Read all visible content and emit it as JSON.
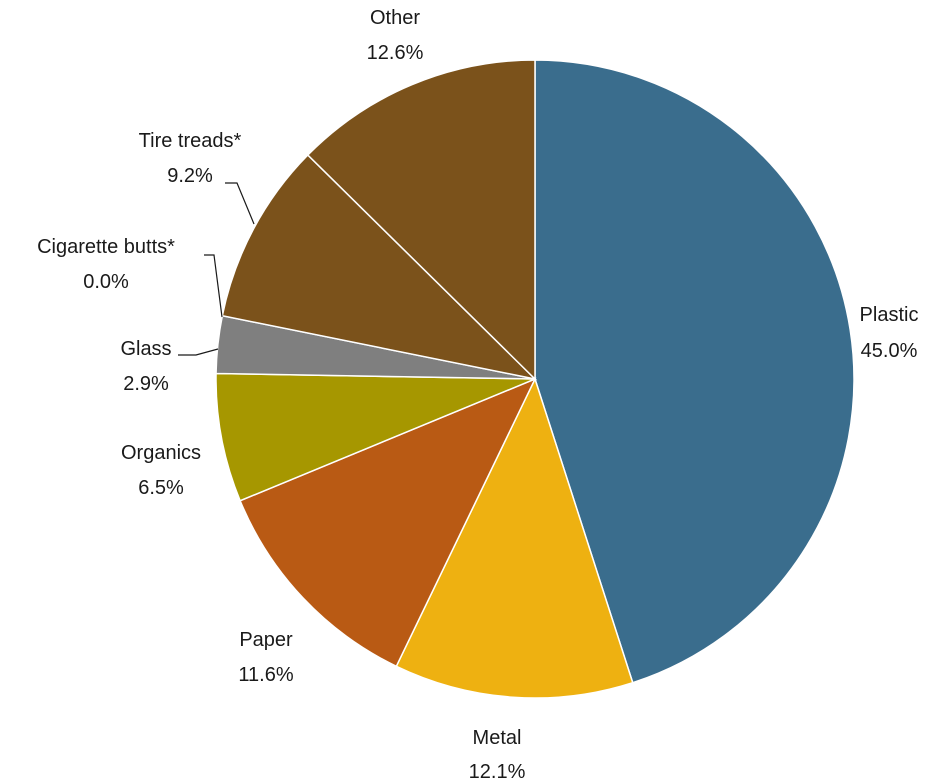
{
  "chart_data": {
    "type": "pie",
    "start_angle_deg": 0,
    "direction": "clockwise",
    "slices": [
      {
        "label": "Plastic",
        "value_label": "45.0%",
        "value": 45.0,
        "color": "#3a6d8d"
      },
      {
        "label": "Metal",
        "value_label": "12.1%",
        "value": 12.1,
        "color": "#eeb111"
      },
      {
        "label": "Paper",
        "value_label": "11.6%",
        "value": 11.6,
        "color": "#b95a14"
      },
      {
        "label": "Organics",
        "value_label": "6.5%",
        "value": 6.5,
        "color": "#a69700"
      },
      {
        "label": "Glass",
        "value_label": "2.9%",
        "value": 2.9,
        "color": "#7f7f7f"
      },
      {
        "label": "Cigarette butts*",
        "value_label": "0.0%",
        "value": 0.0,
        "color": "#7b521b"
      },
      {
        "label": "Tire treads*",
        "value_label": "9.2%",
        "value": 9.2,
        "color": "#7b521b"
      },
      {
        "label": "Other",
        "value_label": "12.6%",
        "value": 12.6,
        "color": "#7b521b"
      }
    ]
  }
}
